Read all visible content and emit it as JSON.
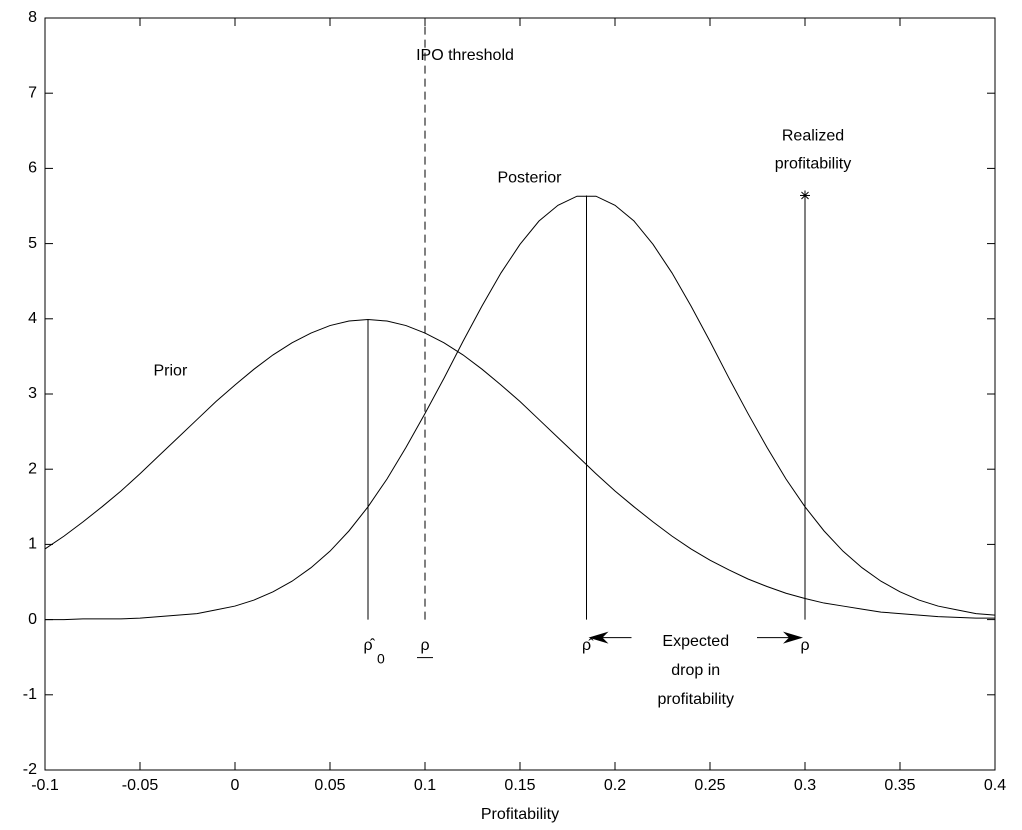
{
  "chart_data": {
    "type": "line",
    "xlabel": "Profitability",
    "xlim": [
      -0.1,
      0.4
    ],
    "ylim": [
      -2,
      8
    ],
    "xticks": [
      -0.1,
      -0.05,
      0,
      0.05,
      0.1,
      0.15,
      0.2,
      0.25,
      0.3,
      0.35,
      0.4
    ],
    "yticks": [
      -2,
      -1,
      0,
      1,
      2,
      3,
      4,
      5,
      6,
      7,
      8
    ],
    "grid": false,
    "x": [
      -0.1,
      -0.09,
      -0.08,
      -0.07,
      -0.06,
      -0.05,
      -0.04,
      -0.03,
      -0.02,
      -0.01,
      0,
      0.01,
      0.02,
      0.03,
      0.04,
      0.05,
      0.06,
      0.07,
      0.08,
      0.09,
      0.1,
      0.11,
      0.12,
      0.13,
      0.14,
      0.15,
      0.16,
      0.17,
      0.18,
      0.19,
      0.2,
      0.21,
      0.22,
      0.23,
      0.24,
      0.25,
      0.26,
      0.27,
      0.28,
      0.29,
      0.3,
      0.31,
      0.32,
      0.33,
      0.34,
      0.35,
      0.36,
      0.37,
      0.38,
      0.39,
      0.4
    ],
    "series": [
      {
        "name": "Prior",
        "color": "#000000",
        "values": [
          0.94,
          1.11,
          1.3,
          1.5,
          1.71,
          1.94,
          2.18,
          2.42,
          2.66,
          2.9,
          3.12,
          3.33,
          3.52,
          3.68,
          3.81,
          3.91,
          3.97,
          3.99,
          3.97,
          3.91,
          3.81,
          3.68,
          3.52,
          3.33,
          3.12,
          2.9,
          2.66,
          2.42,
          2.18,
          1.94,
          1.71,
          1.5,
          1.3,
          1.11,
          0.94,
          0.79,
          0.66,
          0.54,
          0.44,
          0.35,
          0.28,
          0.22,
          0.18,
          0.14,
          0.1,
          0.08,
          0.06,
          0.04,
          0.03,
          0.02,
          0.02
        ]
      },
      {
        "name": "Posterior",
        "color": "#000000",
        "values": [
          0.0,
          0.0,
          0.01,
          0.01,
          0.01,
          0.02,
          0.04,
          0.06,
          0.08,
          0.13,
          0.18,
          0.26,
          0.37,
          0.51,
          0.69,
          0.91,
          1.18,
          1.5,
          1.87,
          2.29,
          2.74,
          3.21,
          3.7,
          4.17,
          4.61,
          4.99,
          5.3,
          5.51,
          5.63,
          5.63,
          5.51,
          5.3,
          4.99,
          4.61,
          4.17,
          3.7,
          3.21,
          2.74,
          2.29,
          1.87,
          1.5,
          1.18,
          0.91,
          0.69,
          0.51,
          0.37,
          0.26,
          0.18,
          0.13,
          0.08,
          0.06
        ]
      }
    ],
    "markers": [
      {
        "x": 0.07,
        "y": 3.99,
        "label": "ρ̂",
        "subscript": "0"
      },
      {
        "x": 0.185,
        "y": 5.64,
        "label": "ρ̂"
      },
      {
        "x": 0.3,
        "y": 5.64,
        "label": "ρ",
        "symbol": "asterisk",
        "annotation": [
          "Realized",
          "profitability"
        ]
      }
    ],
    "threshold": {
      "x": 0.1,
      "label": "ρ",
      "underline": true,
      "annotation": "IPO threshold",
      "dashed": true
    },
    "drop_annotation": [
      "Expected",
      "drop in",
      "profitability"
    ]
  }
}
